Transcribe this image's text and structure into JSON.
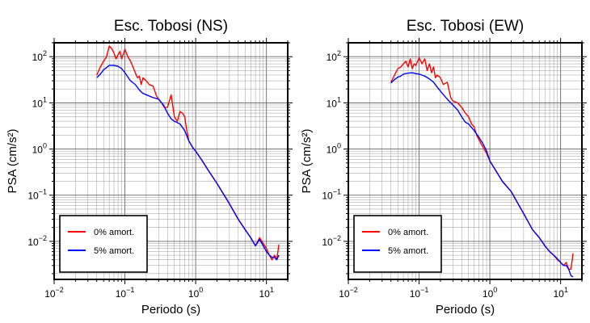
{
  "chart_data": [
    {
      "type": "line",
      "title": "Esc. Tobosi (NS)",
      "xlabel": "Periodo (s)",
      "ylabel": "PSA (cm/s²)",
      "xscale": "log",
      "yscale": "log",
      "xlim": [
        0.01,
        20
      ],
      "ylim": [
        0.0015,
        200
      ],
      "grid": true,
      "legend_position": "bottom-left",
      "xticks": [
        {
          "base": "10",
          "exp": "−2"
        },
        {
          "base": "10",
          "exp": "−1"
        },
        {
          "base": "10",
          "exp": "0"
        },
        {
          "base": "10",
          "exp": "1"
        }
      ],
      "yticks": [
        {
          "base": "10",
          "exp": "2"
        },
        {
          "base": "10",
          "exp": "1"
        },
        {
          "base": "10",
          "exp": "0"
        },
        {
          "base": "10",
          "exp": "−1"
        },
        {
          "base": "10",
          "exp": "−2"
        }
      ],
      "series": [
        {
          "name": "0% amort.",
          "color": "#ff0000",
          "x": [
            0.04,
            0.045,
            0.05,
            0.055,
            0.06,
            0.065,
            0.07,
            0.075,
            0.08,
            0.085,
            0.09,
            0.1,
            0.11,
            0.12,
            0.13,
            0.14,
            0.15,
            0.16,
            0.17,
            0.18,
            0.2,
            0.22,
            0.25,
            0.28,
            0.3,
            0.33,
            0.36,
            0.4,
            0.45,
            0.5,
            0.55,
            0.6,
            0.65,
            0.7,
            0.75,
            0.8,
            0.9,
            1.0,
            1.2,
            1.5,
            2.0,
            3.0,
            4.0,
            5.0,
            6.0,
            7.0,
            8.0,
            9.0,
            10.0,
            11.0,
            12.0,
            13.0,
            14.0,
            15.0
          ],
          "y": [
            40,
            60,
            80,
            100,
            170,
            150,
            120,
            90,
            110,
            130,
            90,
            145,
            100,
            80,
            60,
            45,
            35,
            38,
            25,
            35,
            30,
            25,
            23,
            14,
            12,
            10,
            8,
            8,
            15,
            5,
            4,
            6.5,
            6,
            5,
            2.5,
            1.5,
            1.1,
            0.9,
            0.6,
            0.35,
            0.18,
            0.065,
            0.03,
            0.018,
            0.012,
            0.008,
            0.012,
            0.009,
            0.007,
            0.005,
            0.004,
            0.005,
            0.004,
            0.0085
          ]
        },
        {
          "name": "5% amort.",
          "color": "#0000ff",
          "x": [
            0.04,
            0.045,
            0.05,
            0.055,
            0.06,
            0.07,
            0.08,
            0.09,
            0.1,
            0.12,
            0.14,
            0.16,
            0.18,
            0.2,
            0.25,
            0.3,
            0.35,
            0.4,
            0.45,
            0.5,
            0.6,
            0.7,
            0.8,
            0.9,
            1.0,
            1.2,
            1.5,
            2.0,
            3.0,
            4.0,
            5.0,
            6.0,
            7.0,
            8.0,
            9.0,
            10.0,
            11.0,
            12.0,
            13.0,
            14.0,
            15.0
          ],
          "y": [
            35,
            42,
            52,
            58,
            65,
            65,
            62,
            55,
            45,
            30,
            25,
            19,
            16,
            15,
            13,
            12,
            9,
            6,
            4.5,
            4,
            3.5,
            2.5,
            1.5,
            1.1,
            0.9,
            0.6,
            0.35,
            0.18,
            0.065,
            0.03,
            0.018,
            0.012,
            0.008,
            0.011,
            0.008,
            0.006,
            0.005,
            0.0045,
            0.0045,
            0.004,
            0.005
          ]
        }
      ]
    },
    {
      "type": "line",
      "title": "Esc. Tobosi (EW)",
      "xlabel": "Periodo (s)",
      "ylabel": "PSA (cm/s²)",
      "xscale": "log",
      "yscale": "log",
      "xlim": [
        0.01,
        20
      ],
      "ylim": [
        0.0015,
        200
      ],
      "grid": true,
      "legend_position": "bottom-left",
      "xticks": [
        {
          "base": "10",
          "exp": "−2"
        },
        {
          "base": "10",
          "exp": "−1"
        },
        {
          "base": "10",
          "exp": "0"
        },
        {
          "base": "10",
          "exp": "1"
        }
      ],
      "yticks": [
        {
          "base": "10",
          "exp": "2"
        },
        {
          "base": "10",
          "exp": "1"
        },
        {
          "base": "10",
          "exp": "0"
        },
        {
          "base": "10",
          "exp": "−1"
        },
        {
          "base": "10",
          "exp": "−2"
        }
      ],
      "series": [
        {
          "name": "0% amort.",
          "color": "#ff0000",
          "x": [
            0.04,
            0.045,
            0.05,
            0.055,
            0.06,
            0.065,
            0.07,
            0.075,
            0.08,
            0.085,
            0.09,
            0.1,
            0.11,
            0.12,
            0.13,
            0.14,
            0.15,
            0.16,
            0.17,
            0.18,
            0.2,
            0.22,
            0.25,
            0.28,
            0.3,
            0.35,
            0.4,
            0.45,
            0.5,
            0.55,
            0.6,
            0.65,
            0.7,
            0.75,
            0.8,
            0.9,
            1.0,
            1.2,
            1.5,
            2.0,
            3.0,
            4.0,
            5.0,
            6.0,
            7.0,
            8.0,
            9.0,
            10.0,
            11.0,
            12.0,
            13.0,
            14.0,
            15.0
          ],
          "y": [
            28,
            40,
            55,
            60,
            70,
            80,
            60,
            90,
            55,
            70,
            65,
            95,
            70,
            90,
            50,
            70,
            45,
            60,
            35,
            40,
            35,
            25,
            28,
            13,
            11,
            10,
            8,
            6,
            5,
            3.5,
            3,
            2,
            1.6,
            1.3,
            1.1,
            0.8,
            0.55,
            0.35,
            0.2,
            0.12,
            0.04,
            0.018,
            0.012,
            0.008,
            0.006,
            0.005,
            0.004,
            0.0035,
            0.003,
            0.0035,
            0.0025,
            0.0025,
            0.0055
          ]
        },
        {
          "name": "5% amort.",
          "color": "#0000ff",
          "x": [
            0.04,
            0.045,
            0.05,
            0.055,
            0.06,
            0.07,
            0.08,
            0.09,
            0.1,
            0.12,
            0.14,
            0.16,
            0.18,
            0.2,
            0.25,
            0.3,
            0.35,
            0.4,
            0.45,
            0.5,
            0.6,
            0.7,
            0.8,
            0.9,
            1.0,
            1.2,
            1.5,
            2.0,
            3.0,
            4.0,
            5.0,
            6.0,
            7.0,
            8.0,
            9.0,
            10.0,
            11.0,
            12.0,
            13.0,
            14.0,
            15.0
          ],
          "y": [
            27,
            32,
            36,
            38,
            42,
            44,
            45,
            43,
            42,
            38,
            33,
            28,
            22,
            18,
            12,
            9,
            7,
            5,
            3.8,
            3.5,
            2.5,
            1.8,
            1.3,
            0.9,
            0.55,
            0.35,
            0.2,
            0.12,
            0.04,
            0.018,
            0.012,
            0.008,
            0.006,
            0.005,
            0.0042,
            0.0035,
            0.003,
            0.003,
            0.0025,
            0.0018,
            0.0017
          ]
        }
      ]
    }
  ]
}
